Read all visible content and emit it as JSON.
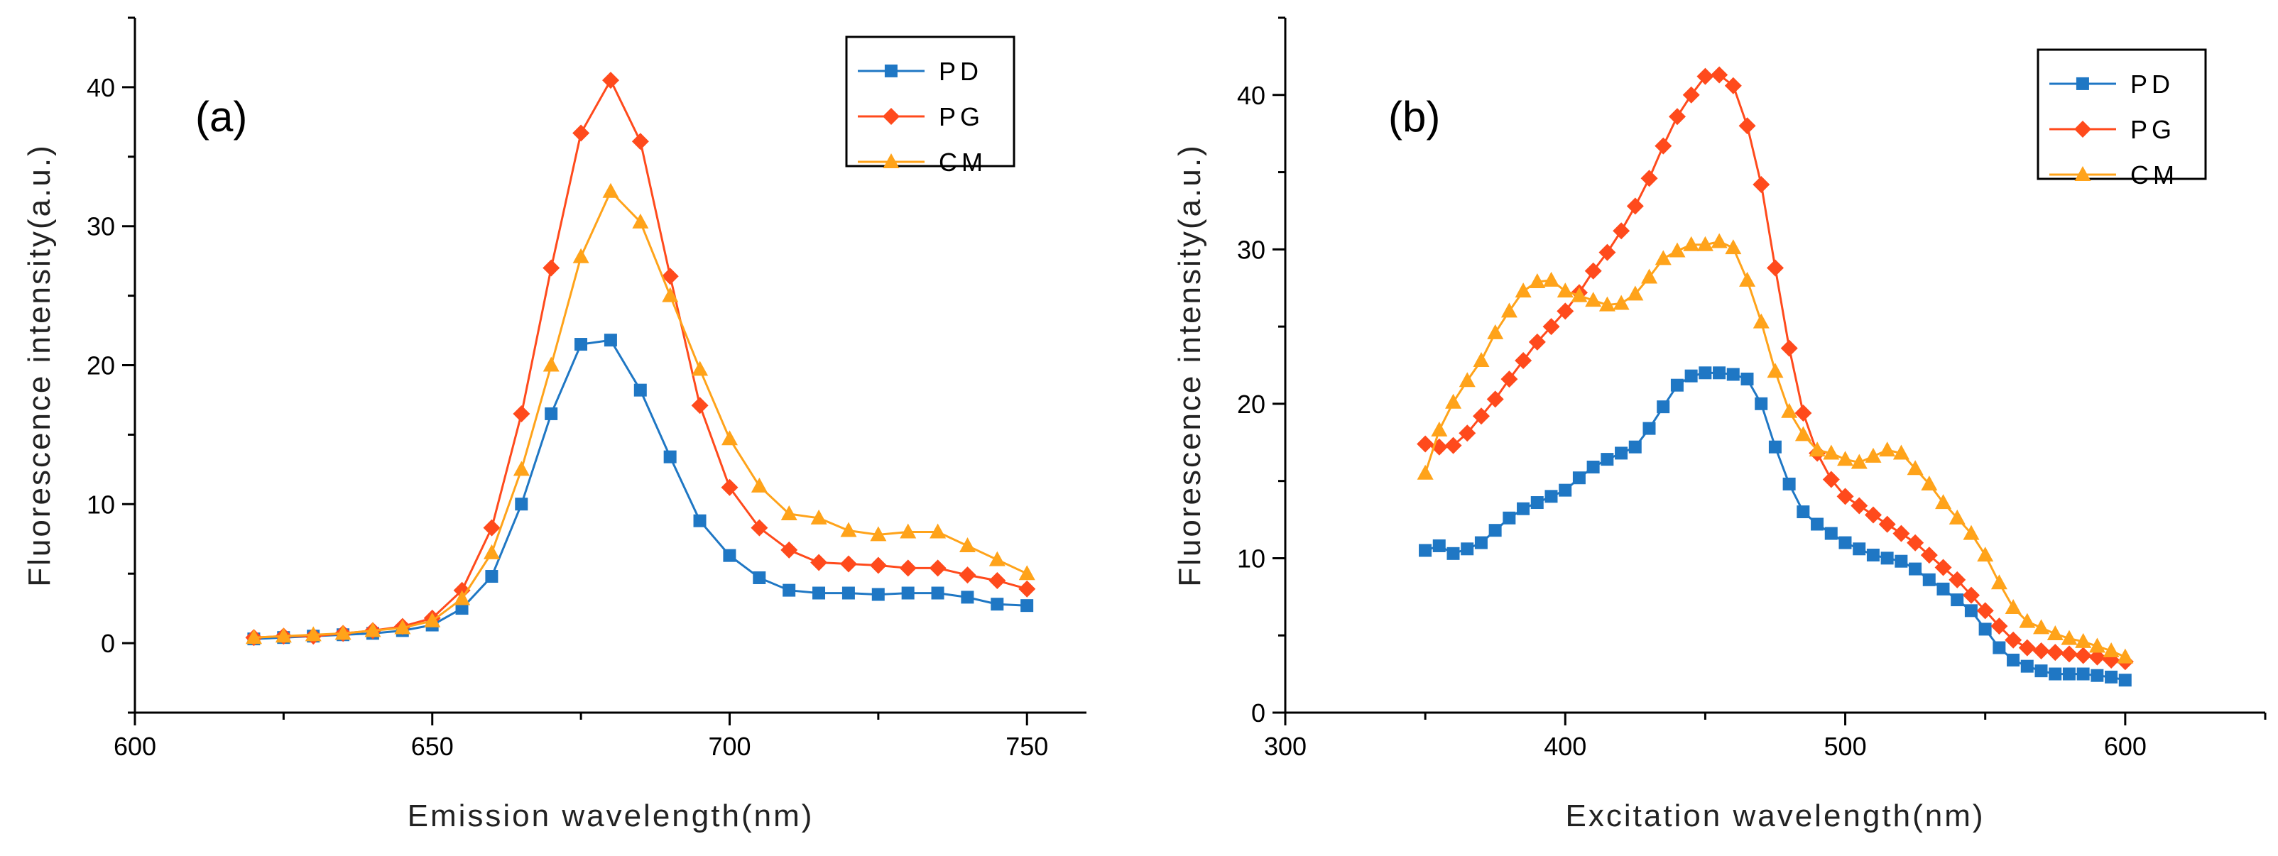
{
  "chart_data": [
    {
      "type": "line",
      "panel_label": "(a)",
      "xlabel": "Emission wavelength(nm)",
      "ylabel": "Fluorescence intensity(a.u.)",
      "xlim": [
        600,
        760
      ],
      "ylim": [
        -5,
        45
      ],
      "xticks": [
        "600",
        "650",
        "700",
        "750"
      ],
      "yticks": [
        "0",
        "10",
        "20",
        "30",
        "40"
      ],
      "legend_position": "top-right",
      "x": [
        620,
        625,
        630,
        635,
        640,
        645,
        650,
        655,
        660,
        665,
        670,
        675,
        680,
        685,
        690,
        695,
        700,
        705,
        710,
        715,
        720,
        725,
        730,
        735,
        740,
        745,
        750
      ],
      "series": [
        {
          "name": "PD",
          "color": "#1f77c4",
          "marker": "square",
          "values": [
            0.3,
            0.4,
            0.5,
            0.6,
            0.7,
            0.9,
            1.3,
            2.5,
            4.8,
            10.0,
            16.5,
            21.5,
            21.8,
            18.2,
            13.4,
            8.8,
            6.3,
            4.7,
            3.8,
            3.6,
            3.6,
            3.5,
            3.6,
            3.6,
            3.3,
            2.8,
            2.7
          ]
        },
        {
          "name": "PG",
          "color": "#ff4a1c",
          "marker": "diamond",
          "values": [
            0.4,
            0.5,
            0.5,
            0.7,
            0.9,
            1.2,
            1.8,
            3.8,
            8.3,
            16.5,
            27.0,
            36.7,
            40.5,
            36.1,
            26.4,
            17.1,
            11.2,
            8.3,
            6.7,
            5.8,
            5.7,
            5.6,
            5.4,
            5.4,
            4.9,
            4.5,
            3.9
          ]
        },
        {
          "name": "CM",
          "color": "#ffa31a",
          "marker": "triangle",
          "values": [
            0.4,
            0.5,
            0.6,
            0.7,
            0.9,
            1.1,
            1.6,
            3.2,
            6.5,
            12.5,
            20.0,
            27.8,
            32.5,
            30.3,
            25.0,
            19.7,
            14.7,
            11.3,
            9.3,
            9.0,
            8.1,
            7.8,
            8.0,
            8.0,
            7.0,
            6.0,
            5.0
          ]
        }
      ]
    },
    {
      "type": "line",
      "panel_label": "(b)",
      "xlabel": "Excitation wavelength(nm)",
      "ylabel": "Fluorescence intensity(a.u.)",
      "xlim": [
        300,
        650
      ],
      "ylim": [
        0,
        45
      ],
      "xticks": [
        "300",
        "400",
        "500",
        "600"
      ],
      "yticks": [
        "0",
        "10",
        "20",
        "30",
        "40"
      ],
      "legend_position": "top-right",
      "x": [
        350,
        355,
        360,
        365,
        370,
        375,
        380,
        385,
        390,
        395,
        400,
        405,
        410,
        415,
        420,
        425,
        430,
        435,
        440,
        445,
        450,
        455,
        460,
        465,
        470,
        475,
        480,
        485,
        490,
        495,
        500,
        505,
        510,
        515,
        520,
        525,
        530,
        535,
        540,
        545,
        550,
        555,
        560,
        565,
        570,
        575,
        580,
        585,
        590,
        595,
        600
      ],
      "series": [
        {
          "name": "PD",
          "color": "#1f77c4",
          "marker": "square",
          "values": [
            10.5,
            10.8,
            10.3,
            10.6,
            11.0,
            11.8,
            12.6,
            13.2,
            13.6,
            14.0,
            14.4,
            15.2,
            15.9,
            16.4,
            16.8,
            17.2,
            18.4,
            19.8,
            21.2,
            21.8,
            22.0,
            22.0,
            21.9,
            21.6,
            20.0,
            17.2,
            14.8,
            13.0,
            12.2,
            11.6,
            11.0,
            10.6,
            10.2,
            10.0,
            9.8,
            9.3,
            8.6,
            8.0,
            7.3,
            6.6,
            5.4,
            4.2,
            3.4,
            3.0,
            2.7,
            2.5,
            2.5,
            2.5,
            2.4,
            2.3,
            2.1
          ]
        },
        {
          "name": "PG",
          "color": "#ff4a1c",
          "marker": "diamond",
          "values": [
            17.4,
            17.2,
            17.3,
            18.1,
            19.2,
            20.3,
            21.6,
            22.8,
            24.0,
            25.0,
            26.0,
            27.2,
            28.6,
            29.8,
            31.2,
            32.8,
            34.6,
            36.7,
            38.6,
            40.0,
            41.2,
            41.3,
            40.6,
            38.0,
            34.2,
            28.8,
            23.6,
            19.4,
            16.8,
            15.1,
            14.0,
            13.4,
            12.8,
            12.2,
            11.6,
            11.0,
            10.2,
            9.4,
            8.6,
            7.6,
            6.6,
            5.6,
            4.7,
            4.2,
            4.0,
            3.9,
            3.8,
            3.7,
            3.6,
            3.4,
            3.3
          ]
        },
        {
          "name": "CM",
          "color": "#ffa31a",
          "marker": "triangle",
          "values": [
            15.5,
            18.3,
            20.1,
            21.5,
            22.8,
            24.6,
            26.0,
            27.3,
            27.9,
            28.0,
            27.3,
            27.0,
            26.7,
            26.4,
            26.5,
            27.1,
            28.2,
            29.4,
            29.9,
            30.3,
            30.3,
            30.5,
            30.1,
            28.0,
            25.3,
            22.1,
            19.5,
            18.0,
            17.0,
            16.8,
            16.4,
            16.2,
            16.6,
            17.0,
            16.8,
            15.8,
            14.8,
            13.6,
            12.6,
            11.6,
            10.2,
            8.4,
            6.8,
            5.9,
            5.5,
            5.1,
            4.8,
            4.6,
            4.3,
            4.0,
            3.6
          ]
        }
      ]
    }
  ]
}
